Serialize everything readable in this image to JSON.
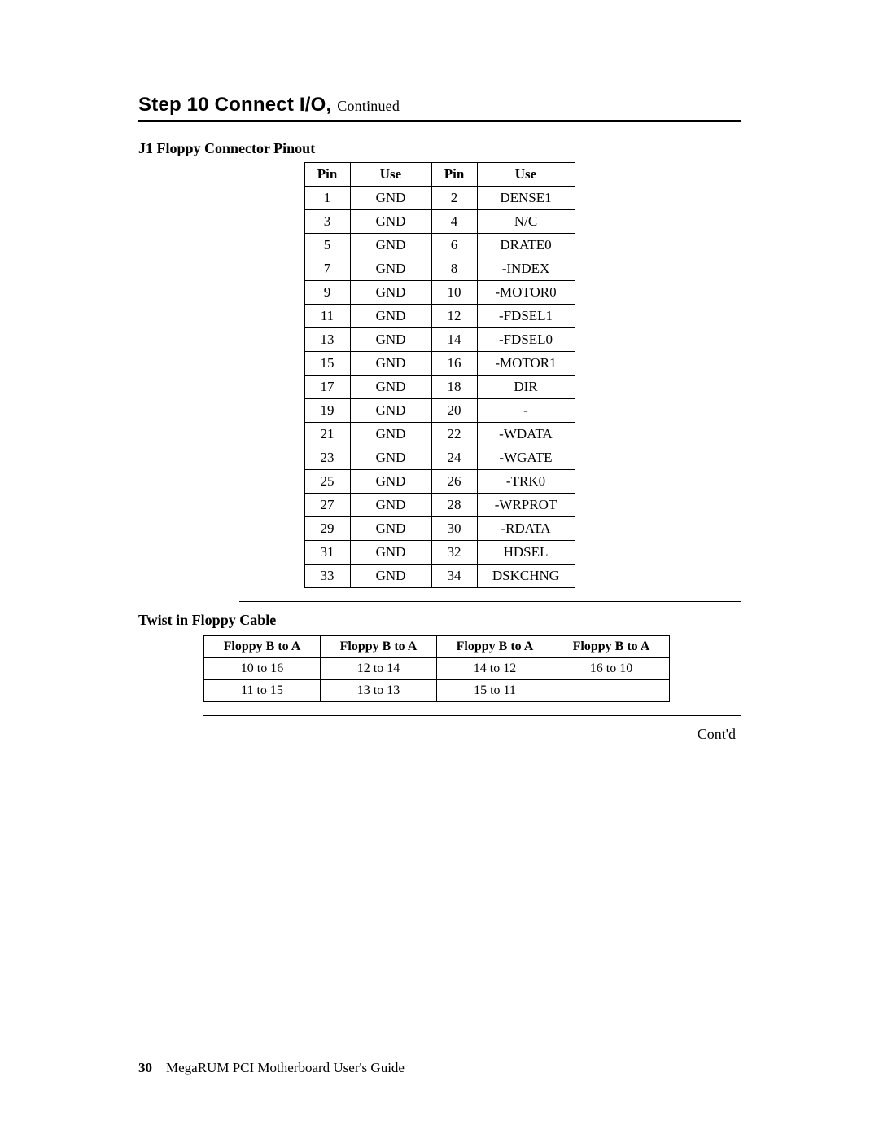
{
  "heading": {
    "main": "Step 10 Connect I/O,",
    "continued": "Continued"
  },
  "pinout": {
    "title": "J1 Floppy Connector Pinout",
    "columns": [
      "Pin",
      "Use",
      "Pin",
      "Use"
    ],
    "rows": [
      [
        "1",
        "GND",
        "2",
        "DENSE1"
      ],
      [
        "3",
        "GND",
        "4",
        "N/C"
      ],
      [
        "5",
        "GND",
        "6",
        "DRATE0"
      ],
      [
        "7",
        "GND",
        "8",
        "-INDEX"
      ],
      [
        "9",
        "GND",
        "10",
        "-MOTOR0"
      ],
      [
        "11",
        "GND",
        "12",
        "-FDSEL1"
      ],
      [
        "13",
        "GND",
        "14",
        "-FDSEL0"
      ],
      [
        "15",
        "GND",
        "16",
        "-MOTOR1"
      ],
      [
        "17",
        "GND",
        "18",
        "DIR"
      ],
      [
        "19",
        "GND",
        "20",
        "-"
      ],
      [
        "21",
        "GND",
        "22",
        "-WDATA"
      ],
      [
        "23",
        "GND",
        "24",
        "-WGATE"
      ],
      [
        "25",
        "GND",
        "26",
        "-TRK0"
      ],
      [
        "27",
        "GND",
        "28",
        "-WRPROT"
      ],
      [
        "29",
        "GND",
        "30",
        "-RDATA"
      ],
      [
        "31",
        "GND",
        "32",
        "HDSEL"
      ],
      [
        "33",
        "GND",
        "34",
        "DSKCHNG"
      ]
    ]
  },
  "twist": {
    "title": "Twist in Floppy Cable",
    "columns": [
      "Floppy B to A",
      "Floppy B to A",
      "Floppy B to A",
      "Floppy B to A"
    ],
    "rows": [
      [
        "10 to 16",
        "12 to 14",
        "14 to 12",
        "16 to 10"
      ],
      [
        "11 to 15",
        "13 to 13",
        "15 to 11",
        ""
      ]
    ]
  },
  "contd": "Cont'd",
  "footer": {
    "page_number": "30",
    "title": "MegaRUM PCI Motherboard User's Guide"
  }
}
